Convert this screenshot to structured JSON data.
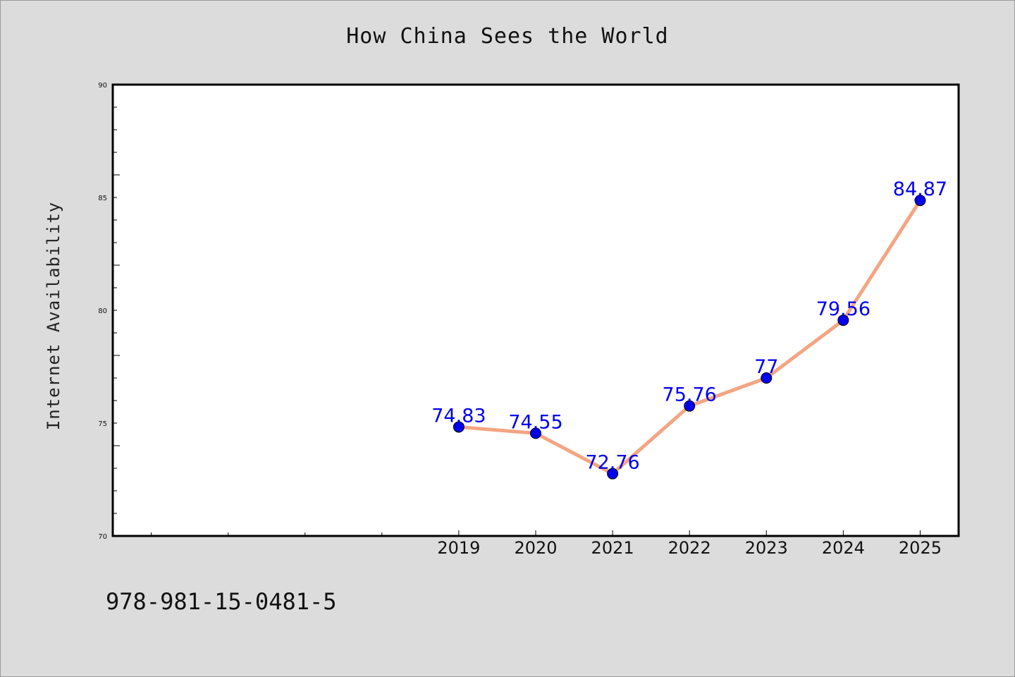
{
  "chart_data": {
    "type": "line",
    "title": "How China Sees the World",
    "xlabel": "",
    "ylabel": "Internet Availability",
    "x": [
      2019,
      2020,
      2021,
      2022,
      2023,
      2024,
      2025
    ],
    "x_ticks": [
      "2019",
      "2020",
      "2021",
      "2022",
      "2023",
      "2024",
      "2025"
    ],
    "x_min_tick": 2015,
    "ylim": [
      70,
      90
    ],
    "y_ticks": [
      "70",
      "75",
      "80",
      "85",
      "90"
    ],
    "series": [
      {
        "values": [
          74.83,
          74.55,
          72.76,
          75.76,
          77,
          79.56,
          84.87
        ],
        "labels": [
          "74.83",
          "74.55",
          "72.76",
          "75.76",
          "77",
          "79.56",
          "84.87"
        ]
      }
    ],
    "grid": false,
    "line_color": "#f4a582",
    "marker_color": "#0000ee",
    "label_color": "#0000ee"
  },
  "footer_text": "978-981-15-0481-5"
}
